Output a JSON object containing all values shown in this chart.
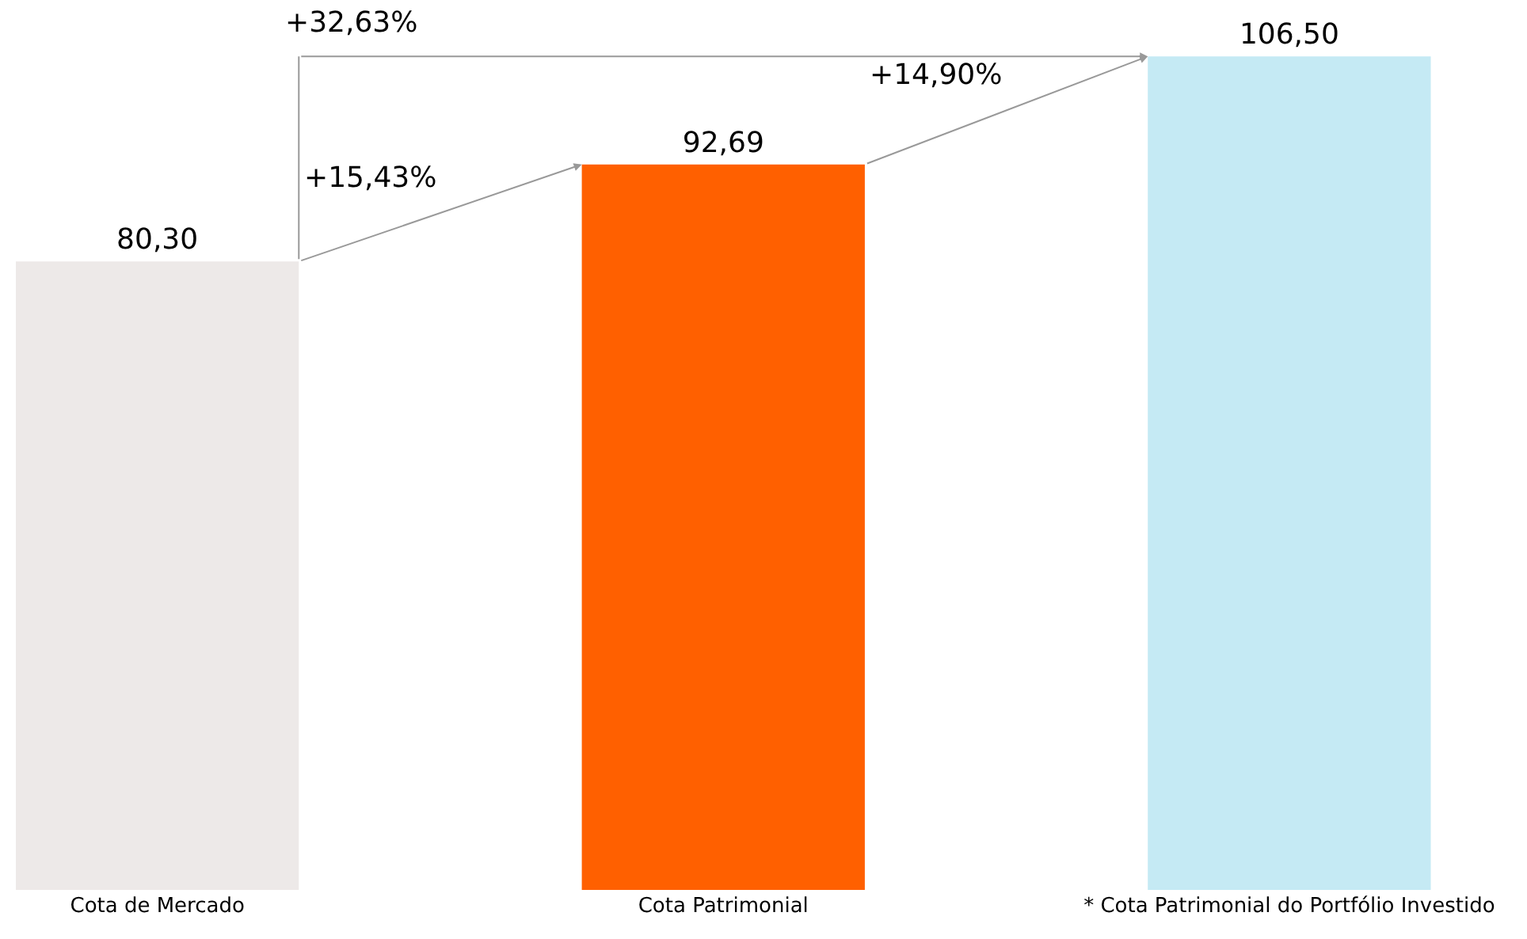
{
  "chart_data": {
    "type": "bar",
    "categories": [
      "Cota de Mercado",
      "Cota Patrimonial",
      "* Cota Patrimonial do Portfólio Investido"
    ],
    "values": [
      80.3,
      92.69,
      106.5
    ],
    "value_labels": [
      "80,30",
      "92,69",
      "106,50"
    ],
    "colors": [
      "#ede9e8",
      "#ff6000",
      "#c5eaf4"
    ],
    "annotations": [
      "+32,63%",
      "+15,43%",
      "+14,90%"
    ],
    "legend": false
  }
}
